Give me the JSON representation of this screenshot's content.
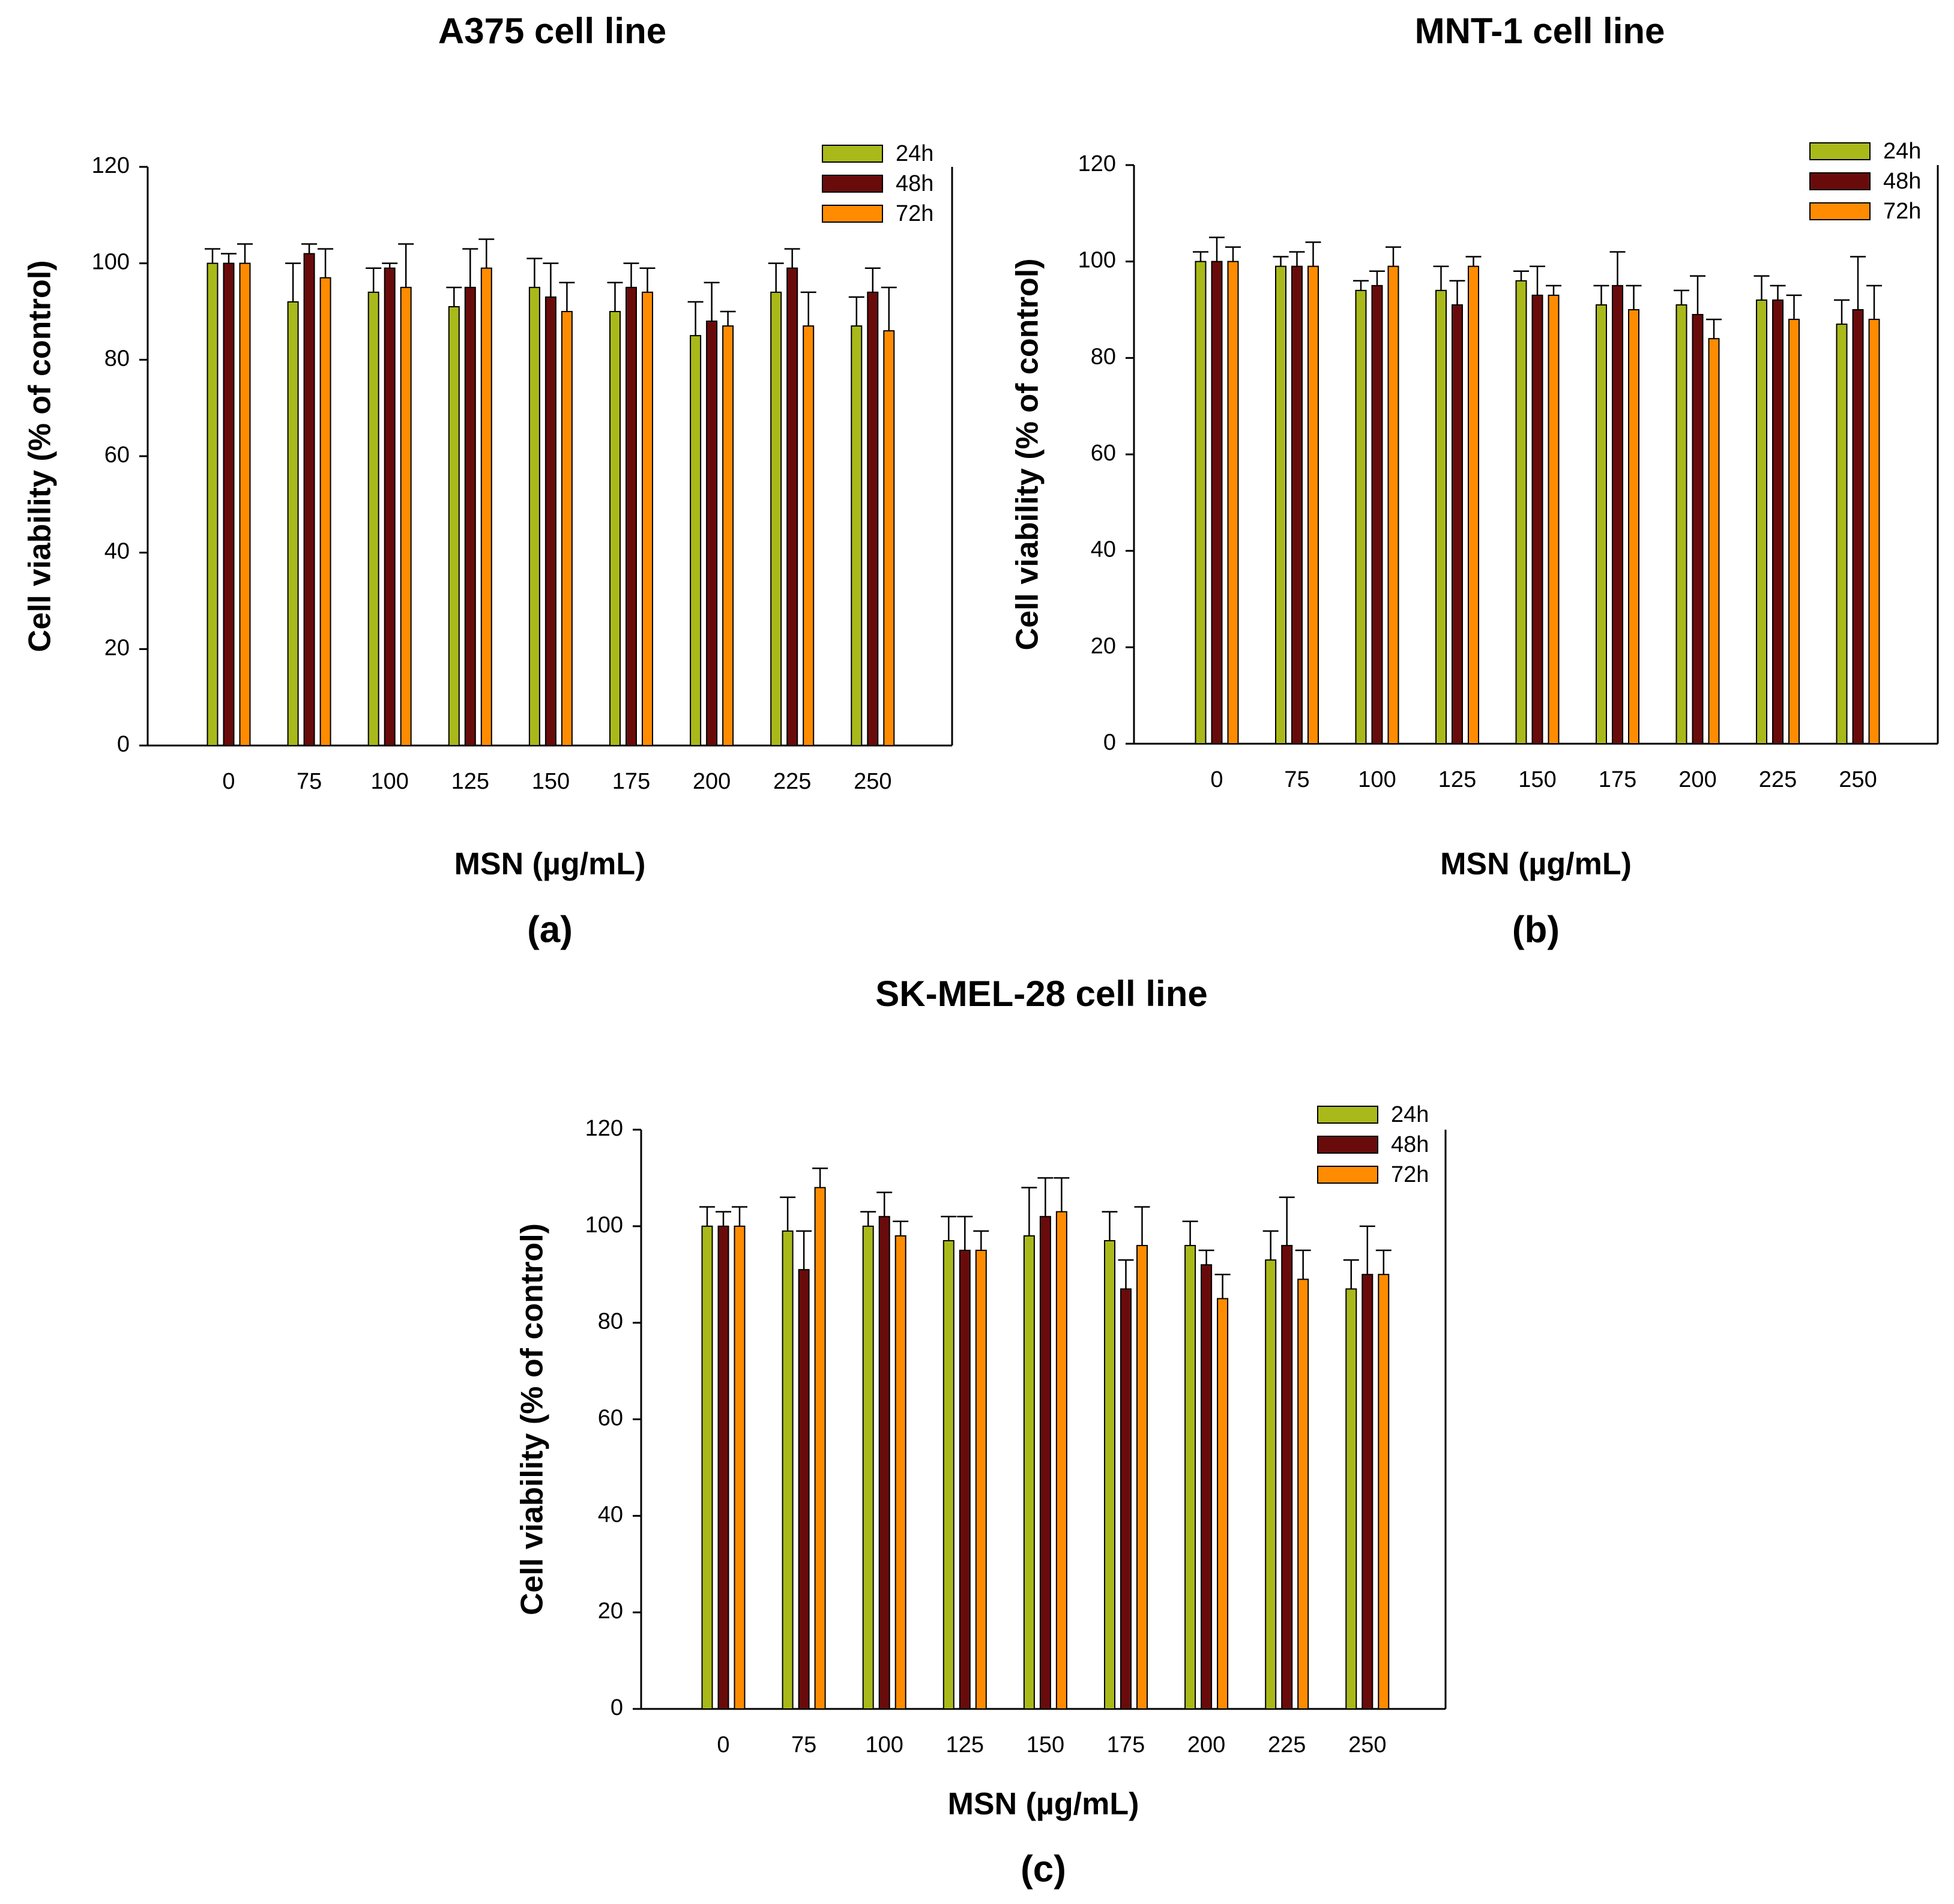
{
  "colors": {
    "24h": "#a9b91a",
    "48h": "#6a0b0b",
    "72h": "#ff8c00",
    "axis": "#000000",
    "background": "#ffffff"
  },
  "chart_data": [
    {
      "type": "bar",
      "title": "A375 cell line",
      "panel_label": "(a)",
      "xlabel": "MSN (µg/mL)",
      "ylabel": "Cell viability (% of control)",
      "ylim": [
        0,
        120
      ],
      "yticks": [
        "0",
        "20",
        "40",
        "60",
        "80",
        "100",
        "120"
      ],
      "categories": [
        "0",
        "75",
        "100",
        "125",
        "150",
        "175",
        "200",
        "225",
        "250"
      ],
      "legend_position": "top-right",
      "series": [
        {
          "name": "24h",
          "values": [
            100,
            92,
            94,
            91,
            95,
            90,
            85,
            94,
            87
          ],
          "errors": [
            3,
            8,
            5,
            4,
            6,
            6,
            7,
            6,
            6
          ]
        },
        {
          "name": "48h",
          "values": [
            100,
            102,
            99,
            95,
            93,
            95,
            88,
            99,
            94
          ],
          "errors": [
            2,
            2,
            1,
            8,
            7,
            5,
            8,
            4,
            5
          ]
        },
        {
          "name": "72h",
          "values": [
            100,
            97,
            95,
            99,
            90,
            94,
            87,
            87,
            86
          ],
          "errors": [
            4,
            6,
            9,
            6,
            6,
            5,
            3,
            7,
            9
          ]
        }
      ]
    },
    {
      "type": "bar",
      "title": "MNT-1 cell line",
      "panel_label": "(b)",
      "xlabel": "MSN (µg/mL)",
      "ylabel": "Cell viability (% of control)",
      "ylim": [
        0,
        120
      ],
      "yticks": [
        "0",
        "20",
        "40",
        "60",
        "80",
        "100",
        "120"
      ],
      "categories": [
        "0",
        "75",
        "100",
        "125",
        "150",
        "175",
        "200",
        "225",
        "250"
      ],
      "legend_position": "top-right",
      "series": [
        {
          "name": "24h",
          "values": [
            100,
            99,
            94,
            94,
            96,
            91,
            91,
            92,
            87
          ],
          "errors": [
            2,
            2,
            2,
            5,
            2,
            4,
            3,
            5,
            5
          ]
        },
        {
          "name": "48h",
          "values": [
            100,
            99,
            95,
            91,
            93,
            95,
            89,
            92,
            90
          ],
          "errors": [
            5,
            3,
            3,
            5,
            6,
            7,
            8,
            3,
            11
          ]
        },
        {
          "name": "72h",
          "values": [
            100,
            99,
            99,
            99,
            93,
            90,
            84,
            88,
            88
          ],
          "errors": [
            3,
            5,
            4,
            2,
            2,
            5,
            4,
            5,
            7
          ]
        }
      ]
    },
    {
      "type": "bar",
      "title": "SK-MEL-28 cell line",
      "panel_label": "(c)",
      "xlabel": "MSN (µg/mL)",
      "ylabel": "Cell viability (% of control)",
      "ylim": [
        0,
        120
      ],
      "yticks": [
        "0",
        "20",
        "40",
        "60",
        "80",
        "100",
        "120"
      ],
      "categories": [
        "0",
        "75",
        "100",
        "125",
        "150",
        "175",
        "200",
        "225",
        "250"
      ],
      "legend_position": "top-right",
      "series": [
        {
          "name": "24h",
          "values": [
            100,
            99,
            100,
            97,
            98,
            97,
            96,
            93,
            87
          ],
          "errors": [
            4,
            7,
            3,
            5,
            10,
            6,
            5,
            6,
            6
          ]
        },
        {
          "name": "48h",
          "values": [
            100,
            91,
            102,
            95,
            102,
            87,
            92,
            96,
            90
          ],
          "errors": [
            3,
            8,
            5,
            7,
            8,
            6,
            3,
            10,
            10
          ]
        },
        {
          "name": "72h",
          "values": [
            100,
            108,
            98,
            95,
            103,
            96,
            85,
            89,
            90
          ],
          "errors": [
            4,
            4,
            3,
            4,
            7,
            8,
            5,
            6,
            5
          ]
        }
      ]
    }
  ]
}
